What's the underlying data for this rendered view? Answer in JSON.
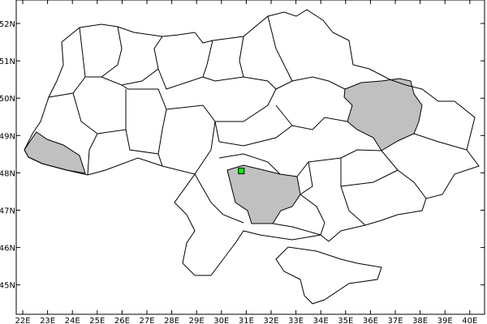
{
  "map": {
    "x_ticks": [
      "22E",
      "23E",
      "24E",
      "25E",
      "26E",
      "27E",
      "28E",
      "29E",
      "30E",
      "31E",
      "32E",
      "33E",
      "34E",
      "35E",
      "36E",
      "37E",
      "38E",
      "39E",
      "40E"
    ],
    "y_ticks": [
      "52N",
      "51N",
      "50N",
      "49N",
      "48N",
      "47N",
      "46N",
      "45N"
    ],
    "lon_range": [
      21.5,
      40.5
    ],
    "lat_range": [
      44.2,
      52.6
    ],
    "highlighted_regions": [
      "Zakarpattia",
      "Kharkiv",
      "Mykolaiv"
    ],
    "highlight_color": "#c0c0c0",
    "marker": {
      "lon": 30.8,
      "lat": 48.05,
      "color": "#00ff00"
    }
  }
}
